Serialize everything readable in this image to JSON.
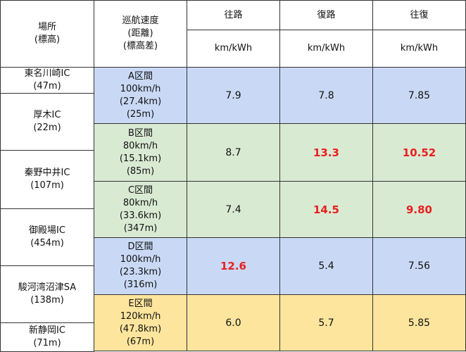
{
  "header": {
    "location": "場所",
    "location_sub": "(標高)",
    "speed": "巡航速度",
    "speed_sub1": "(距離)",
    "speed_sub2": "(標高差)",
    "columns": [
      {
        "label": "往路",
        "unit": "km/kWh"
      },
      {
        "label": "復路",
        "unit": "km/kWh"
      },
      {
        "label": "往復",
        "unit": "km/kWh"
      }
    ]
  },
  "locations": [
    {
      "name": "東名川崎IC",
      "elevation": "(47m)"
    },
    {
      "name": "厚木IC",
      "elevation": "(22m)"
    },
    {
      "name": "秦野中井IC",
      "elevation": "(107m)"
    },
    {
      "name": "御殿場IC",
      "elevation": "(454m)"
    },
    {
      "name": "駿河湾沼津SA",
      "elevation": "(138m)"
    },
    {
      "name": "新静岡IC",
      "elevation": "(71m)"
    }
  ],
  "sections": [
    {
      "name": "A区間",
      "speed": "100km/h",
      "distance": "(27.4km)",
      "elevation_diff": "(25m)",
      "values": [
        "7.9",
        "7.8",
        "7.85"
      ]
    },
    {
      "name": "B区間",
      "speed": "80km/h",
      "distance": "(15.1km)",
      "elevation_diff": "(85m)",
      "values": [
        "8.7",
        "13.3",
        "10.52"
      ]
    },
    {
      "name": "C区間",
      "speed": "80km/h",
      "distance": "(33.6km)",
      "elevation_diff": "(347m)",
      "values": [
        "7.4",
        "14.5",
        "9.80"
      ]
    },
    {
      "name": "D区間",
      "speed": "100km/h",
      "distance": "(23.3km)",
      "elevation_diff": "(316m)",
      "values": [
        "12.6",
        "5.4",
        "7.56"
      ]
    },
    {
      "name": "E区間",
      "speed": "120km/h",
      "distance": "(47.8km)",
      "elevation_diff": "(67m)",
      "values": [
        "6.0",
        "5.7",
        "5.85"
      ]
    }
  ]
}
